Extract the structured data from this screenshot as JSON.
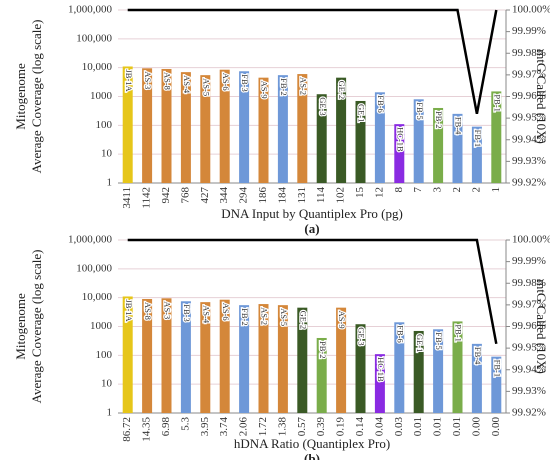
{
  "chart_data": [
    {
      "type": "bar",
      "caption": "(a)",
      "xlabel": "DNA Input by Quantiplex Pro (pg)",
      "ylabel": [
        "Mitogenome",
        "Average Coverage (log scale)"
      ],
      "y2label": "mtG Called (10X)",
      "categories": [
        "3411",
        "1142",
        "942",
        "768",
        "427",
        "344",
        "294",
        "186",
        "184",
        "131",
        "114",
        "102",
        "15",
        "12",
        "8",
        "7",
        "3",
        "2",
        "2",
        "1"
      ],
      "series": [
        {
          "labels": [
            "JB-1A",
            "AS-3",
            "AS-8",
            "AS-4",
            "AS-5",
            "AS-6",
            "FB-3",
            "AS-9",
            "FB-2",
            "AS-2",
            "GE-3",
            "GE-2",
            "GE-1",
            "FB-6",
            "HC-1B",
            "FB-5",
            "PB-2",
            "FB-4",
            "FB-1",
            "PB-1"
          ],
          "values": [
            11000,
            9500,
            9000,
            7000,
            5500,
            8500,
            7500,
            4500,
            5500,
            6000,
            1200,
            4500,
            700,
            1400,
            110,
            800,
            400,
            250,
            90,
            1500
          ],
          "colors": [
            "#e6c619",
            "#d4873a",
            "#d4873a",
            "#d4873a",
            "#d4873a",
            "#d4873a",
            "#6e98d8",
            "#d4873a",
            "#6e98d8",
            "#d4873a",
            "#3a5a25",
            "#3a5a25",
            "#3a5a25",
            "#6e98d8",
            "#8a2be2",
            "#6e98d8",
            "#7aad4a",
            "#6e98d8",
            "#6e98d8",
            "#7aad4a"
          ]
        },
        {
          "axis": "y2",
          "color": "#000000",
          "values": [
            100,
            100,
            100,
            100,
            100,
            100,
            100,
            100,
            100,
            100,
            100,
            100,
            100,
            100,
            100,
            100,
            100,
            100,
            99.952,
            100
          ]
        }
      ],
      "ylim": [
        1,
        1000000
      ],
      "yscale": "log",
      "yticks": [
        1,
        10,
        100,
        1000,
        {
          "value": 10000,
          "label": "10,000"
        },
        {
          "value": 100000,
          "label": "100,000"
        },
        {
          "value": 1000000,
          "label": "1,000,000"
        }
      ],
      "y2lim": [
        99.92,
        100
      ],
      "y2ticks": [
        {
          "value": 99.92,
          "label": "99.92%"
        },
        {
          "value": 99.93,
          "label": "99.93%"
        },
        {
          "value": 99.94,
          "label": "99.94%"
        },
        {
          "value": 99.95,
          "label": "99.95%"
        },
        {
          "value": 99.96,
          "label": "99.96%"
        },
        {
          "value": 99.97,
          "label": "99.97%"
        },
        {
          "value": 99.98,
          "label": "99.98%"
        },
        {
          "value": 99.99,
          "label": "99.99%"
        },
        {
          "value": 100,
          "label": "100.00%"
        }
      ],
      "grid": true
    },
    {
      "type": "bar",
      "caption": "(b)",
      "xlabel": "hDNA Ratio (Quantiplex Pro)",
      "ylabel": [
        "Mitogenome",
        "Average Coverage (log scale)"
      ],
      "y2label": "mtG Called (10X)",
      "categories": [
        "86.72",
        "14.35",
        "6.98",
        "5.3",
        "3.95",
        "3.74",
        "2.06",
        "1.72",
        "1.38",
        "0.57",
        "0.39",
        "0.19",
        "0.14",
        "0.04",
        "0.03",
        "0.01",
        "0.01",
        "0.01",
        "0.00",
        "0.00"
      ],
      "series": [
        {
          "labels": [
            "JB-1A",
            "AS-8",
            "AS-3",
            "FB-3",
            "AS-4",
            "AS-6",
            "FB-2",
            "AS-2",
            "AS-5",
            "GE-2",
            "PB-2",
            "AS-9",
            "GE-3",
            "HC-1B",
            "FB-6",
            "GE-1",
            "FB-5",
            "PB-1",
            "FB-4",
            "FB-1"
          ],
          "values": [
            11000,
            9000,
            9500,
            7500,
            7000,
            8500,
            5500,
            6000,
            5500,
            4500,
            400,
            4500,
            1200,
            110,
            1400,
            700,
            800,
            1500,
            250,
            90
          ],
          "colors": [
            "#e6c619",
            "#d4873a",
            "#d4873a",
            "#6e98d8",
            "#d4873a",
            "#d4873a",
            "#6e98d8",
            "#d4873a",
            "#d4873a",
            "#3a5a25",
            "#7aad4a",
            "#d4873a",
            "#3a5a25",
            "#8a2be2",
            "#6e98d8",
            "#3a5a25",
            "#6e98d8",
            "#7aad4a",
            "#6e98d8",
            "#6e98d8"
          ]
        },
        {
          "axis": "y2",
          "color": "#000000",
          "values": [
            100,
            100,
            100,
            100,
            100,
            100,
            100,
            100,
            100,
            100,
            100,
            100,
            100,
            100,
            100,
            100,
            100,
            100,
            100,
            99.952
          ]
        }
      ],
      "ylim": [
        1,
        1000000
      ],
      "yscale": "log",
      "yticks": [
        1,
        10,
        100,
        1000,
        {
          "value": 10000,
          "label": "10,000"
        },
        {
          "value": 100000,
          "label": "100,000"
        },
        {
          "value": 1000000,
          "label": "1,000,000"
        }
      ],
      "y2lim": [
        99.92,
        100
      ],
      "y2ticks": [
        {
          "value": 99.92,
          "label": "99.92%"
        },
        {
          "value": 99.93,
          "label": "99.93%"
        },
        {
          "value": 99.94,
          "label": "99.94%"
        },
        {
          "value": 99.95,
          "label": "99.95%"
        },
        {
          "value": 99.96,
          "label": "99.96%"
        },
        {
          "value": 99.97,
          "label": "99.97%"
        },
        {
          "value": 99.98,
          "label": "99.98%"
        },
        {
          "value": 99.99,
          "label": "99.99%"
        },
        {
          "value": 100,
          "label": "100.00%"
        }
      ],
      "grid": true
    }
  ]
}
